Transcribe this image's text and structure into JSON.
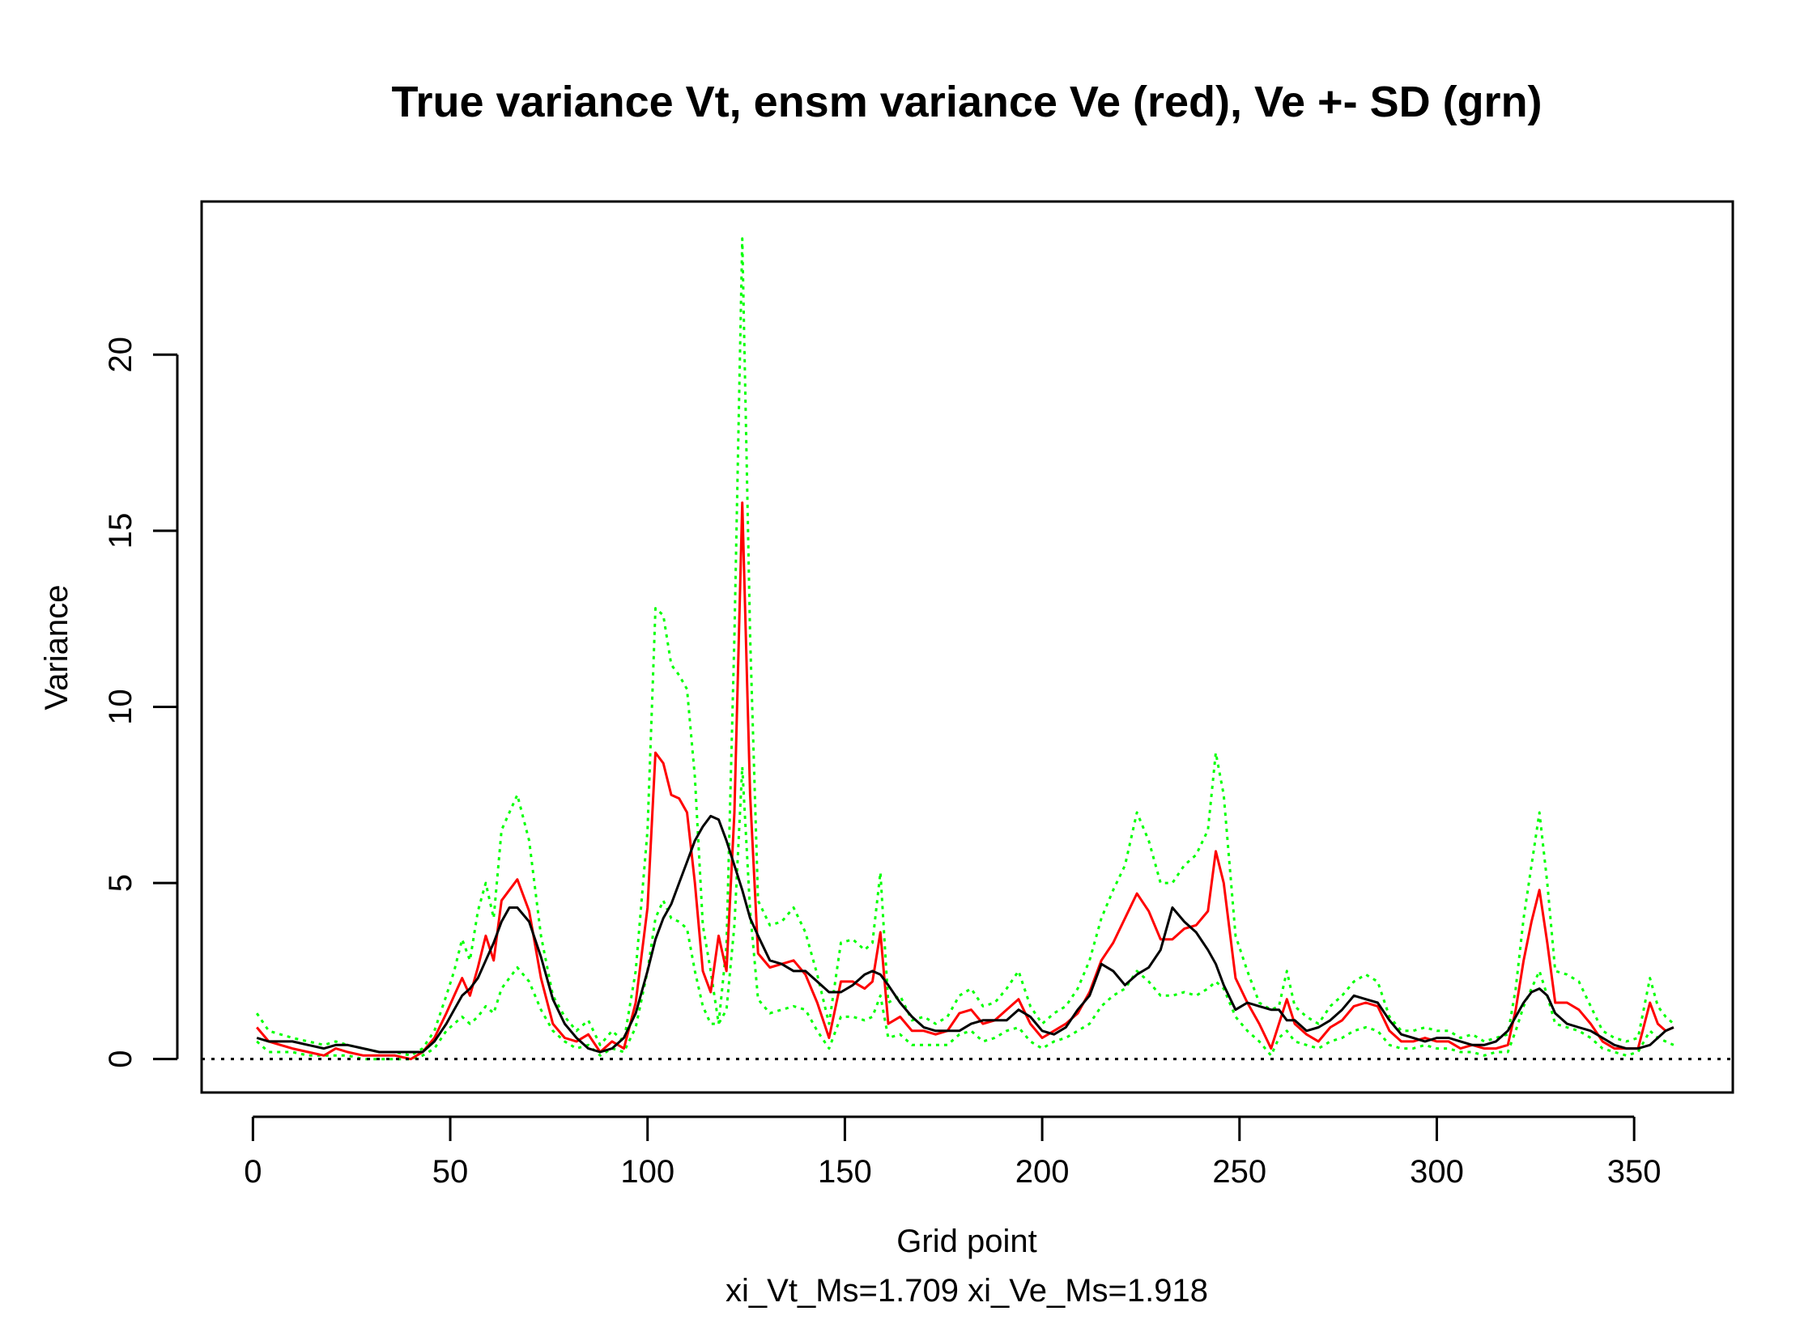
{
  "chart_data": {
    "type": "line",
    "title": "True variance Vt, ensm variance Ve (red), Ve +- SD (grn)",
    "xlabel": "Grid point",
    "ylabel": "Variance",
    "subtitle": "xi_Vt_Ms=1.709   xi_Ve_Ms=1.918",
    "xlim": [
      -13,
      375
    ],
    "ylim": [
      -0.95,
      24.35
    ],
    "xticks": [
      0,
      50,
      100,
      150,
      200,
      250,
      300,
      350
    ],
    "yticks": [
      0,
      5,
      10,
      15,
      20
    ],
    "reference_line": {
      "y": 0,
      "style": "dotted",
      "color": "#000000"
    },
    "grid": false,
    "legend": "none",
    "series": [
      {
        "color": "#00ff00",
        "style": "dotted",
        "x": [
          1,
          4,
          7,
          10,
          14,
          18,
          21,
          24,
          28,
          32,
          36,
          40,
          43,
          46,
          49,
          51,
          53,
          55,
          57,
          59,
          61,
          63,
          65,
          67,
          70,
          73,
          76,
          79,
          82,
          85,
          88,
          91,
          94,
          97,
          100,
          102,
          104,
          106,
          108,
          110,
          112,
          114,
          116,
          118,
          120,
          122,
          124,
          126,
          128,
          131,
          134,
          137,
          140,
          143,
          146,
          149,
          152,
          155,
          157,
          159,
          161,
          164,
          167,
          170,
          173,
          176,
          179,
          182,
          185,
          188,
          191,
          194,
          197,
          200,
          203,
          206,
          209,
          212,
          215,
          218,
          221,
          224,
          227,
          230,
          233,
          236,
          239,
          242,
          244,
          246,
          249,
          252,
          255,
          258,
          260,
          262,
          264,
          267,
          270,
          273,
          276,
          279,
          282,
          285,
          288,
          291,
          294,
          297,
          300,
          303,
          306,
          309,
          312,
          315,
          318,
          320,
          322,
          324,
          326,
          328,
          330,
          333,
          336,
          339,
          342,
          345,
          348,
          351,
          354,
          356,
          358,
          360
        ],
        "values": [
          1.3,
          0.8,
          0.7,
          0.6,
          0.5,
          0.4,
          0.5,
          0.4,
          0.3,
          0.2,
          0.2,
          0.1,
          0.3,
          0.8,
          1.8,
          2.5,
          3.4,
          2.8,
          4.2,
          5.0,
          4.0,
          6.5,
          7.0,
          7.5,
          6.2,
          3.5,
          1.8,
          1.2,
          0.8,
          1.1,
          0.4,
          0.8,
          0.5,
          2.5,
          6.5,
          12.8,
          12.6,
          11.2,
          10.9,
          10.5,
          8.0,
          3.8,
          2.5,
          1.0,
          3.2,
          12.0,
          23.3,
          12.0,
          4.5,
          3.8,
          3.9,
          4.3,
          3.6,
          2.4,
          1.0,
          3.3,
          3.4,
          3.1,
          3.3,
          5.3,
          1.6,
          1.8,
          1.1,
          1.2,
          1.0,
          1.2,
          1.8,
          2.0,
          1.5,
          1.6,
          2.0,
          2.5,
          1.5,
          1.0,
          1.3,
          1.5,
          2.0,
          2.8,
          4.0,
          4.8,
          5.5,
          7.0,
          6.2,
          5.0,
          5.0,
          5.5,
          5.8,
          6.5,
          8.7,
          7.5,
          3.5,
          2.5,
          1.6,
          1.4,
          1.5,
          2.5,
          1.5,
          1.2,
          1.0,
          1.5,
          1.8,
          2.2,
          2.4,
          2.2,
          1.2,
          0.8,
          0.8,
          0.9,
          0.8,
          0.8,
          0.6,
          0.7,
          0.5,
          0.6,
          0.7,
          2.0,
          4.0,
          5.5,
          7.0,
          5.0,
          2.5,
          2.4,
          2.2,
          1.5,
          0.8,
          0.6,
          0.5,
          0.6,
          2.3,
          1.5,
          1.2,
          1.0
        ]
      },
      {
        "color": "#00ff00",
        "style": "dotted",
        "x": [
          1,
          4,
          7,
          10,
          14,
          18,
          21,
          24,
          28,
          32,
          36,
          40,
          43,
          46,
          49,
          51,
          53,
          55,
          57,
          59,
          61,
          63,
          65,
          67,
          70,
          73,
          76,
          79,
          82,
          85,
          88,
          91,
          94,
          97,
          100,
          102,
          104,
          106,
          108,
          110,
          112,
          114,
          116,
          118,
          120,
          122,
          124,
          126,
          128,
          131,
          134,
          137,
          140,
          143,
          146,
          149,
          152,
          155,
          157,
          159,
          161,
          164,
          167,
          170,
          173,
          176,
          179,
          182,
          185,
          188,
          191,
          194,
          197,
          200,
          203,
          206,
          209,
          212,
          215,
          218,
          221,
          224,
          227,
          230,
          233,
          236,
          239,
          242,
          244,
          246,
          249,
          252,
          255,
          258,
          260,
          262,
          264,
          267,
          270,
          273,
          276,
          279,
          282,
          285,
          288,
          291,
          294,
          297,
          300,
          303,
          306,
          309,
          312,
          315,
          318,
          320,
          322,
          324,
          326,
          328,
          330,
          333,
          336,
          339,
          342,
          345,
          348,
          351,
          354,
          356,
          358,
          360
        ],
        "values": [
          0.5,
          0.2,
          0.2,
          0.2,
          0.1,
          0.1,
          0.1,
          0.1,
          0.0,
          0.0,
          0.0,
          0.0,
          0.1,
          0.3,
          0.8,
          1.0,
          1.2,
          1.0,
          1.2,
          1.5,
          1.3,
          2.0,
          2.3,
          2.6,
          2.2,
          1.4,
          0.8,
          0.5,
          0.3,
          0.4,
          0.1,
          0.3,
          0.2,
          0.9,
          2.5,
          4.0,
          4.5,
          4.0,
          3.9,
          3.7,
          2.5,
          1.5,
          1.0,
          1.0,
          1.4,
          3.8,
          8.3,
          4.2,
          1.7,
          1.3,
          1.4,
          1.5,
          1.4,
          0.8,
          0.3,
          1.2,
          1.2,
          1.1,
          1.2,
          1.8,
          0.6,
          0.7,
          0.4,
          0.4,
          0.4,
          0.4,
          0.7,
          0.8,
          0.5,
          0.6,
          0.8,
          0.9,
          0.5,
          0.3,
          0.5,
          0.6,
          0.8,
          1.0,
          1.5,
          1.8,
          2.0,
          2.5,
          2.2,
          1.8,
          1.8,
          1.9,
          1.8,
          2.0,
          2.2,
          2.0,
          1.2,
          0.8,
          0.5,
          0.1,
          0.6,
          0.8,
          0.5,
          0.4,
          0.3,
          0.5,
          0.6,
          0.8,
          0.9,
          0.8,
          0.4,
          0.3,
          0.3,
          0.4,
          0.3,
          0.3,
          0.2,
          0.2,
          0.1,
          0.2,
          0.2,
          0.8,
          1.5,
          2.0,
          2.5,
          1.8,
          1.0,
          0.9,
          0.8,
          0.6,
          0.3,
          0.2,
          0.1,
          0.2,
          0.8,
          0.6,
          0.5,
          0.4
        ]
      },
      {
        "color": "#ff0000",
        "style": "solid",
        "x": [
          1,
          4,
          7,
          10,
          14,
          18,
          21,
          24,
          28,
          32,
          36,
          40,
          43,
          46,
          49,
          51,
          53,
          55,
          57,
          59,
          61,
          63,
          65,
          67,
          70,
          73,
          76,
          79,
          82,
          85,
          88,
          91,
          94,
          97,
          100,
          102,
          104,
          106,
          108,
          110,
          112,
          114,
          116,
          118,
          120,
          122,
          124,
          126,
          128,
          131,
          134,
          137,
          140,
          143,
          146,
          149,
          152,
          155,
          157,
          159,
          161,
          164,
          167,
          170,
          173,
          176,
          179,
          182,
          185,
          188,
          191,
          194,
          197,
          200,
          203,
          206,
          209,
          212,
          215,
          218,
          221,
          224,
          227,
          230,
          233,
          236,
          239,
          242,
          244,
          246,
          249,
          252,
          255,
          258,
          260,
          262,
          264,
          267,
          270,
          273,
          276,
          279,
          282,
          285,
          288,
          291,
          294,
          297,
          300,
          303,
          306,
          309,
          312,
          315,
          318,
          320,
          322,
          324,
          326,
          328,
          330,
          333,
          336,
          339,
          342,
          345,
          348,
          351,
          354,
          356,
          358,
          360
        ],
        "values": [
          0.9,
          0.5,
          0.4,
          0.3,
          0.2,
          0.1,
          0.3,
          0.2,
          0.1,
          0.1,
          0.1,
          0.0,
          0.2,
          0.6,
          1.3,
          1.8,
          2.3,
          1.8,
          2.6,
          3.5,
          2.8,
          4.5,
          4.8,
          5.1,
          4.2,
          2.3,
          1.0,
          0.6,
          0.5,
          0.7,
          0.2,
          0.5,
          0.3,
          1.6,
          4.3,
          8.7,
          8.4,
          7.5,
          7.4,
          7.0,
          5.0,
          2.5,
          1.9,
          3.5,
          2.5,
          7.0,
          15.8,
          7.5,
          3.0,
          2.6,
          2.7,
          2.8,
          2.4,
          1.6,
          0.6,
          2.2,
          2.2,
          2.0,
          2.2,
          3.6,
          1.0,
          1.2,
          0.8,
          0.8,
          0.7,
          0.8,
          1.3,
          1.4,
          1.0,
          1.1,
          1.4,
          1.7,
          1.0,
          0.6,
          0.8,
          1.0,
          1.3,
          1.9,
          2.8,
          3.3,
          4.0,
          4.7,
          4.2,
          3.4,
          3.4,
          3.7,
          3.8,
          4.2,
          5.9,
          5.0,
          2.3,
          1.6,
          1.0,
          0.3,
          1.0,
          1.7,
          1.0,
          0.7,
          0.5,
          0.9,
          1.1,
          1.5,
          1.6,
          1.5,
          0.8,
          0.5,
          0.5,
          0.6,
          0.5,
          0.5,
          0.3,
          0.4,
          0.3,
          0.3,
          0.4,
          1.4,
          2.8,
          3.9,
          4.8,
          3.3,
          1.6,
          1.6,
          1.4,
          1.0,
          0.5,
          0.3,
          0.3,
          0.3,
          1.6,
          1.0,
          0.8,
          0.9
        ]
      },
      {
        "color": "#000000",
        "style": "solid",
        "x": [
          1,
          4,
          7,
          10,
          14,
          18,
          21,
          24,
          28,
          32,
          36,
          40,
          43,
          46,
          49,
          51,
          53,
          55,
          57,
          59,
          61,
          63,
          65,
          67,
          70,
          73,
          76,
          79,
          82,
          85,
          88,
          91,
          94,
          97,
          100,
          102,
          104,
          106,
          108,
          110,
          112,
          114,
          116,
          118,
          120,
          122,
          124,
          126,
          128,
          131,
          134,
          137,
          140,
          143,
          146,
          149,
          152,
          155,
          157,
          159,
          161,
          164,
          167,
          170,
          173,
          176,
          179,
          182,
          185,
          188,
          191,
          194,
          197,
          200,
          203,
          206,
          209,
          212,
          215,
          218,
          221,
          224,
          227,
          230,
          233,
          236,
          239,
          242,
          244,
          246,
          249,
          252,
          255,
          258,
          260,
          262,
          264,
          267,
          270,
          273,
          276,
          279,
          282,
          285,
          288,
          291,
          294,
          297,
          300,
          303,
          306,
          309,
          312,
          315,
          318,
          320,
          322,
          324,
          326,
          328,
          330,
          333,
          336,
          339,
          342,
          345,
          348,
          351,
          354,
          356,
          358,
          360
        ],
        "values": [
          0.6,
          0.5,
          0.5,
          0.5,
          0.4,
          0.3,
          0.4,
          0.4,
          0.3,
          0.2,
          0.2,
          0.2,
          0.2,
          0.5,
          1.0,
          1.4,
          1.8,
          2.0,
          2.3,
          2.8,
          3.3,
          3.9,
          4.3,
          4.3,
          3.9,
          2.9,
          1.7,
          1.0,
          0.6,
          0.3,
          0.2,
          0.3,
          0.6,
          1.3,
          2.5,
          3.4,
          4.0,
          4.4,
          5.0,
          5.6,
          6.2,
          6.6,
          6.9,
          6.8,
          6.2,
          5.5,
          4.8,
          4.0,
          3.5,
          2.8,
          2.7,
          2.5,
          2.5,
          2.2,
          1.9,
          1.9,
          2.1,
          2.4,
          2.5,
          2.4,
          2.1,
          1.6,
          1.2,
          0.9,
          0.8,
          0.8,
          0.8,
          1.0,
          1.1,
          1.1,
          1.1,
          1.4,
          1.2,
          0.8,
          0.7,
          0.9,
          1.4,
          1.8,
          2.7,
          2.5,
          2.1,
          2.4,
          2.6,
          3.1,
          4.3,
          3.9,
          3.6,
          3.1,
          2.7,
          2.1,
          1.4,
          1.6,
          1.5,
          1.4,
          1.4,
          1.1,
          1.1,
          0.8,
          0.9,
          1.1,
          1.4,
          1.8,
          1.7,
          1.6,
          1.1,
          0.7,
          0.6,
          0.5,
          0.6,
          0.6,
          0.5,
          0.4,
          0.4,
          0.5,
          0.8,
          1.2,
          1.6,
          1.9,
          2.0,
          1.8,
          1.3,
          1.0,
          0.9,
          0.8,
          0.6,
          0.4,
          0.3,
          0.3,
          0.4,
          0.6,
          0.8,
          0.9
        ]
      }
    ]
  }
}
